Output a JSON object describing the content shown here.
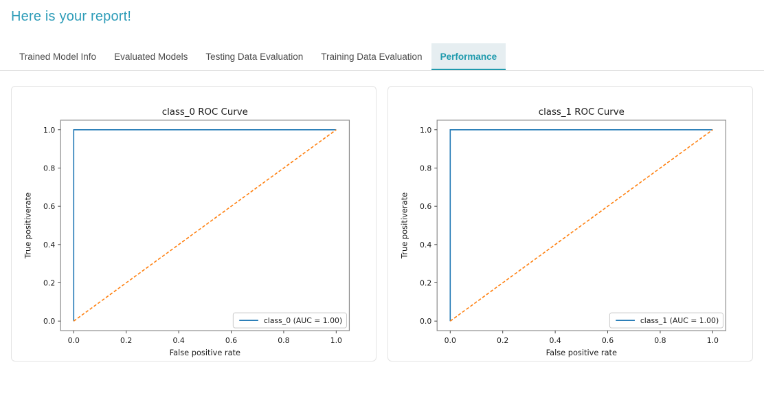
{
  "header": {
    "title": "Here is your report!"
  },
  "tabs": [
    {
      "label": "Trained Model Info",
      "active": false
    },
    {
      "label": "Evaluated Models",
      "active": false
    },
    {
      "label": "Testing Data Evaluation",
      "active": false
    },
    {
      "label": "Training Data Evaluation",
      "active": false
    },
    {
      "label": "Performance",
      "active": true
    }
  ],
  "colors": {
    "accent_teal": "#2d9cb8",
    "active_tab_bg": "#e6eef1",
    "roc_line_blue": "#1f77b4",
    "chance_line_orange": "#ff7f0e",
    "axis_spine_gray": "#8a8a8a"
  },
  "chart_data": [
    {
      "type": "line",
      "title": "class_0 ROC Curve",
      "xlabel": "False positive rate",
      "ylabel": "True positiverate",
      "xlim": [
        -0.05,
        1.05
      ],
      "ylim": [
        -0.05,
        1.05
      ],
      "xticks": [
        0.0,
        0.2,
        0.4,
        0.6,
        0.8,
        1.0
      ],
      "yticks": [
        0.0,
        0.2,
        0.4,
        0.6,
        0.8,
        1.0
      ],
      "grid": false,
      "legend_position": "lower right",
      "series": [
        {
          "name": "class_0 (AUC = 1.00)",
          "color": "#1f77b4",
          "style": "solid",
          "x": [
            0,
            0,
            1
          ],
          "y": [
            0,
            1,
            1
          ],
          "in_legend": true
        },
        {
          "name": "chance-diagonal",
          "color": "#ff7f0e",
          "style": "dashed",
          "x": [
            0,
            1
          ],
          "y": [
            0,
            1
          ],
          "in_legend": false
        }
      ]
    },
    {
      "type": "line",
      "title": "class_1 ROC Curve",
      "xlabel": "False positive rate",
      "ylabel": "True positiverate",
      "xlim": [
        -0.05,
        1.05
      ],
      "ylim": [
        -0.05,
        1.05
      ],
      "xticks": [
        0.0,
        0.2,
        0.4,
        0.6,
        0.8,
        1.0
      ],
      "yticks": [
        0.0,
        0.2,
        0.4,
        0.6,
        0.8,
        1.0
      ],
      "grid": false,
      "legend_position": "lower right",
      "series": [
        {
          "name": "class_1 (AUC = 1.00)",
          "color": "#1f77b4",
          "style": "solid",
          "x": [
            0,
            0,
            1
          ],
          "y": [
            0,
            1,
            1
          ],
          "in_legend": true
        },
        {
          "name": "chance-diagonal",
          "color": "#ff7f0e",
          "style": "dashed",
          "x": [
            0,
            1
          ],
          "y": [
            0,
            1
          ],
          "in_legend": false
        }
      ]
    }
  ]
}
